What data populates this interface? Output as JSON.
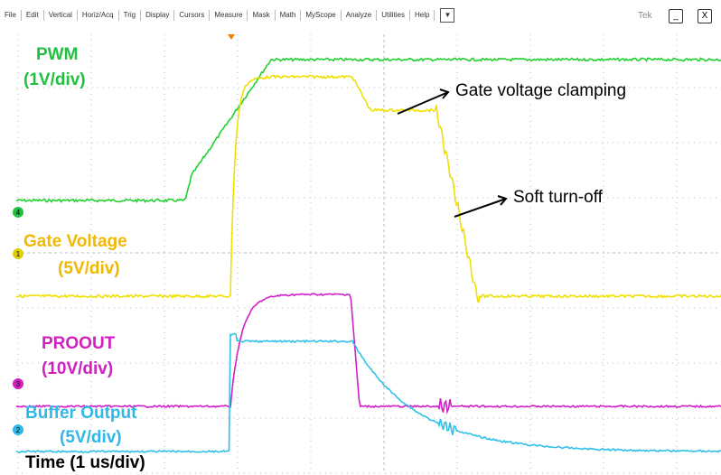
{
  "menu": [
    "File",
    "Edit",
    "Vertical",
    "Horiz/Acq",
    "Trig",
    "Display",
    "Cursors",
    "Measure",
    "Mask",
    "Math",
    "MyScope",
    "Analyze",
    "Utilities",
    "Help"
  ],
  "menu_dropdown": "▼",
  "brand": "Tek",
  "window_buttons": [
    "_",
    "X"
  ],
  "channel_markers": [
    "4",
    "1",
    "3",
    "2"
  ],
  "labels": {
    "pwm": [
      "PWM",
      "(1V/div)"
    ],
    "gate": [
      "Gate Voltage",
      "(5V/div)"
    ],
    "proout": [
      "PROOUT",
      "(10V/div)"
    ],
    "buffer": [
      "Buffer Output",
      "(5V/div)"
    ],
    "time": "Time (1 us/div)"
  },
  "annotations": [
    "Gate voltage clamping",
    "Soft turn-off"
  ]
}
